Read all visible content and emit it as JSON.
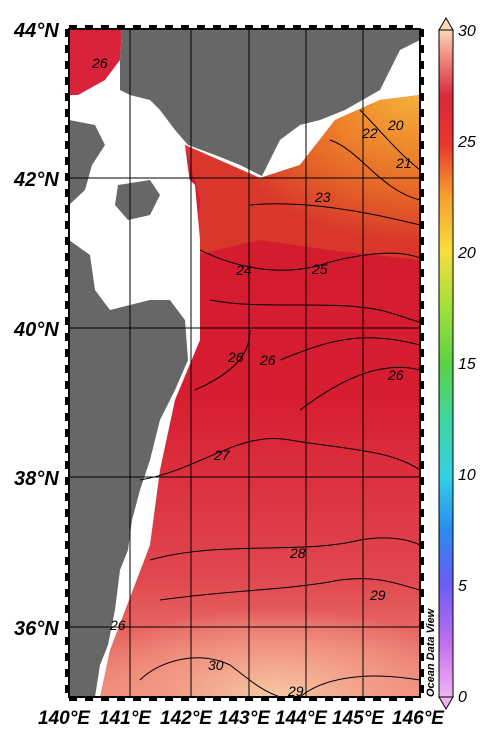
{
  "map": {
    "latitude_labels": [
      "44°N",
      "42°N",
      "40°N",
      "38°N",
      "36°N"
    ],
    "longitude_labels": [
      "140°E",
      "141°E",
      "142°E",
      "143°E",
      "144°E",
      "145°E",
      "146°E"
    ],
    "contour_labels": [
      "26",
      "22",
      "20",
      "21",
      "23",
      "24",
      "25",
      "26",
      "26",
      "26",
      "27",
      "28",
      "29",
      "30",
      "29",
      "26"
    ],
    "land_color": "#676767",
    "ocean_shading": "sea surface temperature"
  },
  "colorbar": {
    "tick_labels": [
      "30",
      "25",
      "20",
      "15",
      "10",
      "5",
      "0"
    ],
    "min": 0,
    "max": 30,
    "colors": [
      "#f3a2f3",
      "#c070ee",
      "#6a5cf2",
      "#2a8bf2",
      "#33cfe6",
      "#3fd69a",
      "#5ad243",
      "#bde63a",
      "#f7dd3b",
      "#f6a02e",
      "#f06a22",
      "#e8362e",
      "#d8283a",
      "#f08b80",
      "#fbd8b6"
    ]
  },
  "watermark": "Ocean Data View"
}
